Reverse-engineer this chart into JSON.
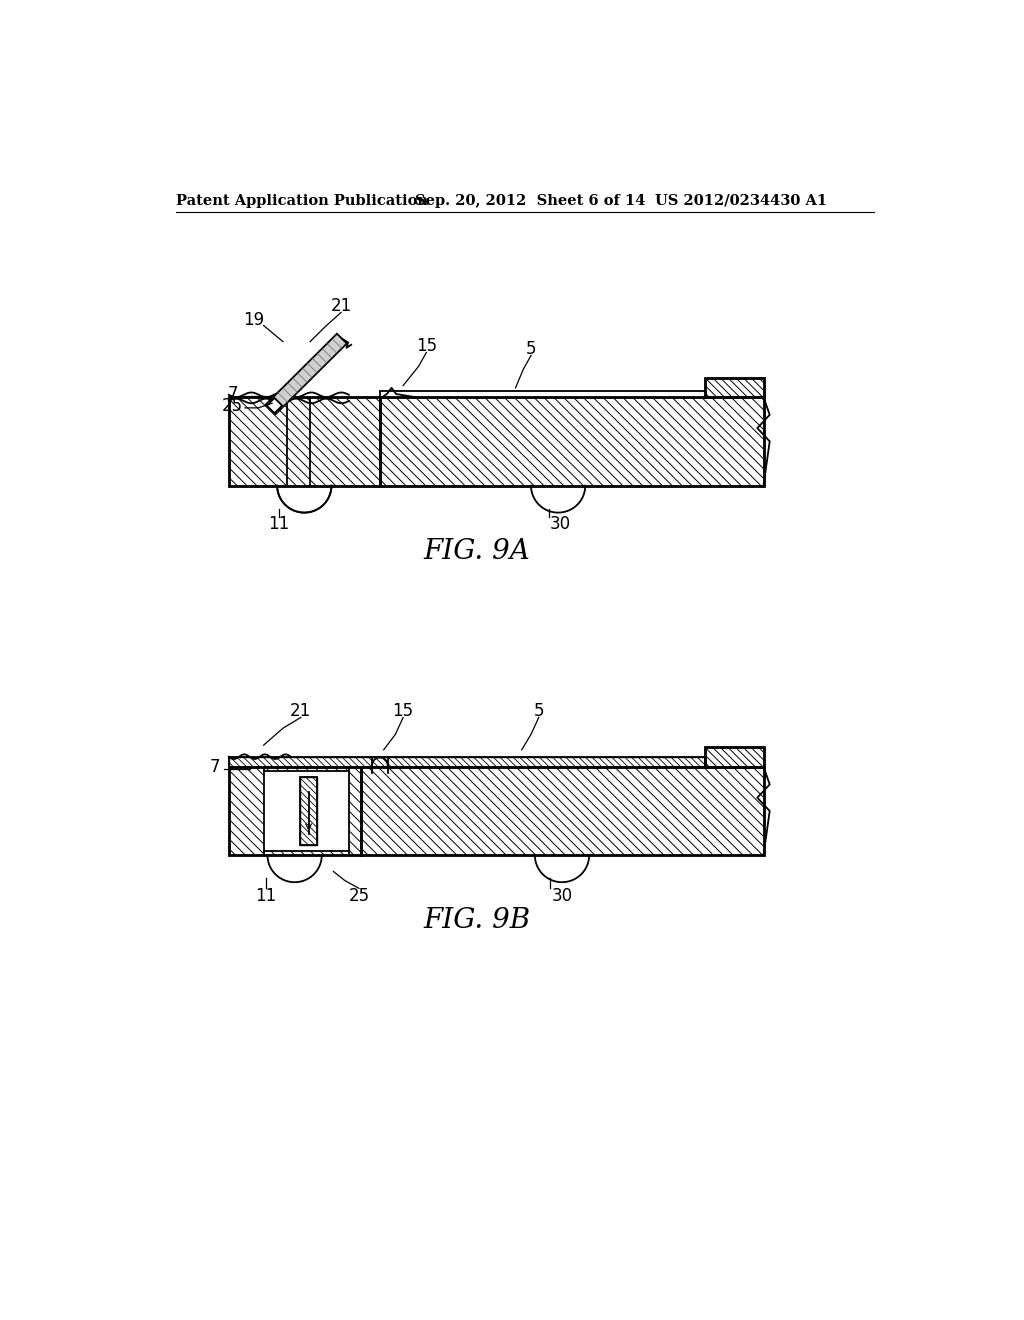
{
  "header_left": "Patent Application Publication",
  "header_mid": "Sep. 20, 2012  Sheet 6 of 14",
  "header_right": "US 2012/0234430 A1",
  "fig_label_A": "FIG. 9A",
  "fig_label_B": "FIG. 9B",
  "background_color": "#ffffff",
  "line_color": "#000000",
  "header_fontsize": 10.5,
  "fig_label_fontsize": 20,
  "callout_fontsize": 12,
  "lw_main": 1.3,
  "lw_thick": 2.0,
  "lw_thin": 0.8
}
